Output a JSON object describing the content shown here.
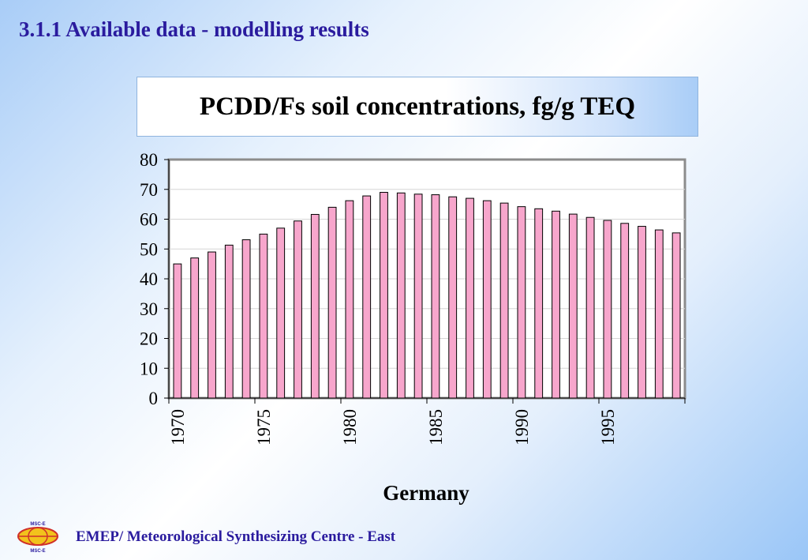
{
  "heading": "3.1.1 Available data - modelling results",
  "footer": {
    "text": "EMEP/ Meteorological Synthesizing Centre - East",
    "logo_top": "MSC-E",
    "logo_bottom": "MSC-E"
  },
  "colors": {
    "bar_fill": "#f7a6cc",
    "bar_stroke": "#000000",
    "heading": "#2a1b9e"
  },
  "chart_data": {
    "type": "bar",
    "title": "PCDD/Fs soil concentrations, fg/g TEQ",
    "xlabel": "Germany",
    "ylabel": "",
    "ylim": [
      0,
      80
    ],
    "yticks": [
      0,
      10,
      20,
      30,
      40,
      50,
      60,
      70,
      80
    ],
    "xtick_labels": [
      "1970",
      "1975",
      "1980",
      "1985",
      "1990",
      "1995"
    ],
    "grid": true,
    "categories": [
      1970,
      1971,
      1972,
      1973,
      1974,
      1975,
      1976,
      1977,
      1978,
      1979,
      1980,
      1981,
      1982,
      1983,
      1984,
      1985,
      1986,
      1987,
      1988,
      1989,
      1990,
      1991,
      1992,
      1993,
      1994,
      1995,
      1996,
      1997,
      1998,
      1999
    ],
    "values": [
      45,
      47,
      49,
      51.3,
      53.1,
      55,
      57,
      59.4,
      61.6,
      64,
      66.2,
      67.8,
      69,
      68.8,
      68.4,
      68.2,
      67.5,
      67,
      66.2,
      65.4,
      64.2,
      63.5,
      62.7,
      61.7,
      60.6,
      59.6,
      58.6,
      57.6,
      56.4,
      55.4
    ]
  }
}
